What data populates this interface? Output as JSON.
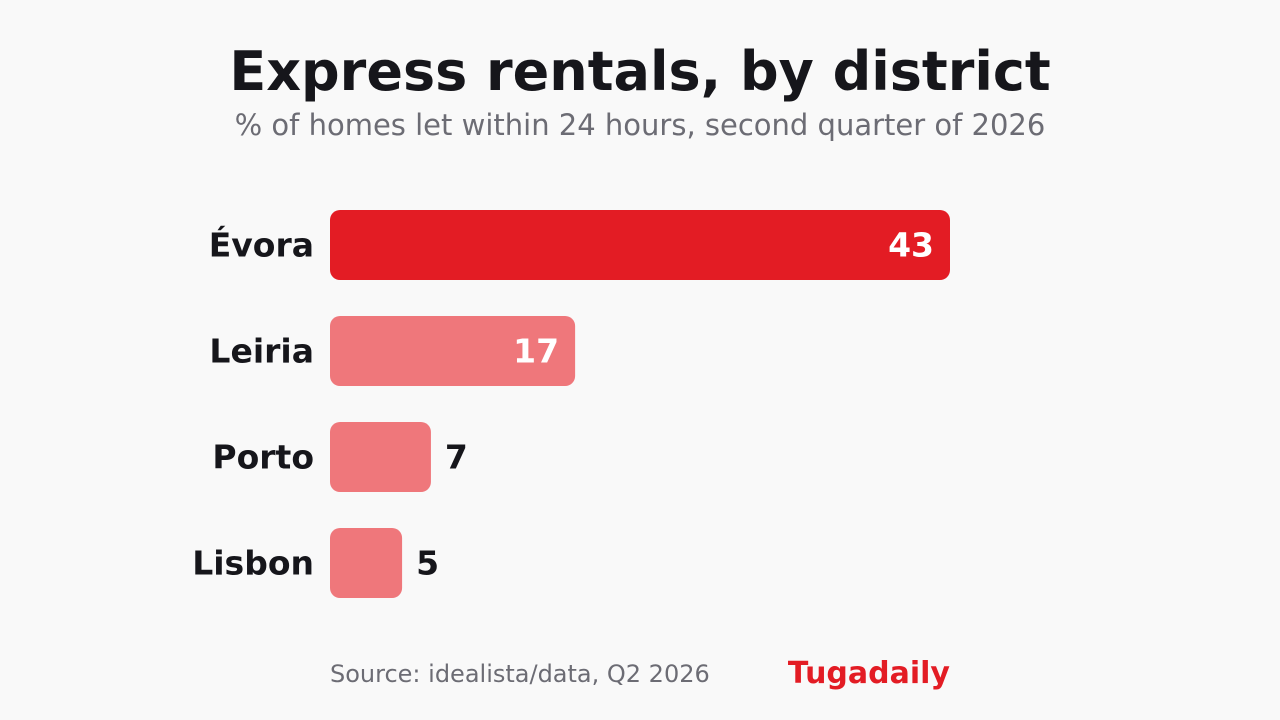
{
  "header": {
    "title": "Express rentals, by district",
    "subtitle": "% of homes let within 24 hours, second quarter of 2026"
  },
  "footer": {
    "source": "Source: idealista/data, Q2 2026",
    "brand": "Tugadaily"
  },
  "colors": {
    "highlight": "#e31c24",
    "muted": "#ef777b",
    "label": "#16161b",
    "value_inside": "#ffffff",
    "brand": "#e31c24"
  },
  "chart_data": {
    "type": "bar",
    "orientation": "horizontal",
    "categories": [
      "Évora",
      "Leiria",
      "Porto",
      "Lisbon"
    ],
    "values": [
      43,
      17,
      7,
      5
    ],
    "data_labels": [
      "43",
      "17",
      "7",
      "5"
    ],
    "highlight": "Évora",
    "title": "Express rentals, by district",
    "subtitle": "% of homes let within 24 hours, second quarter of 2026",
    "xlabel": "",
    "ylabel": "",
    "xlim": [
      0,
      43
    ],
    "grid": false,
    "legend": "none"
  }
}
